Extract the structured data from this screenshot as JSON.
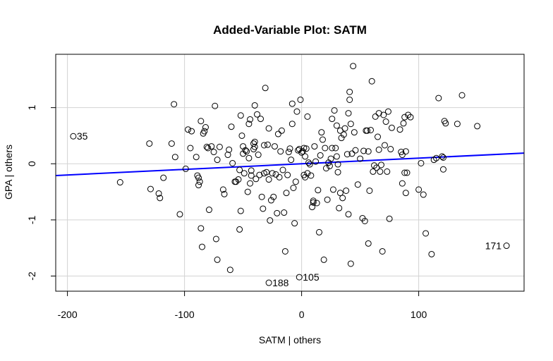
{
  "chart_data": {
    "type": "scatter",
    "title": "Added-Variable Plot: SATM",
    "xlabel": "SATM | others",
    "ylabel": "GPA | others",
    "xlim": [
      -210,
      190
    ],
    "ylim": [
      -2.27,
      1.95
    ],
    "x_ticks": [
      -200,
      -100,
      0,
      100
    ],
    "y_ticks": [
      -2,
      -1,
      0,
      1
    ],
    "grid": true,
    "fit_line": {
      "color": "#0000ff",
      "x": [
        -210,
        190
      ],
      "y": [
        -0.21,
        0.19
      ]
    },
    "labeled_points": [
      {
        "label": "35",
        "x": -195,
        "y": 0.49
      },
      {
        "label": "171",
        "x": 175,
        "y": -1.46
      },
      {
        "label": "105",
        "x": -2,
        "y": -2.02
      },
      {
        "label": "188",
        "x": -28,
        "y": -2.12
      }
    ],
    "points": [
      [
        -195,
        0.49
      ],
      [
        175,
        -1.46
      ],
      [
        -2,
        -2.02
      ],
      [
        -28,
        -2.12
      ],
      [
        -155,
        -0.33
      ],
      [
        -130,
        0.36
      ],
      [
        -129,
        -0.45
      ],
      [
        -122,
        -0.53
      ],
      [
        -121,
        -0.61
      ],
      [
        -118,
        -0.25
      ],
      [
        -111,
        0.36
      ],
      [
        -109,
        1.06
      ],
      [
        -108,
        0.12
      ],
      [
        -104,
        -0.9
      ],
      [
        -99,
        -0.09
      ],
      [
        -97,
        0.61
      ],
      [
        -95,
        0.28
      ],
      [
        -94,
        0.58
      ],
      [
        -90,
        0.12
      ],
      [
        -89,
        -0.21
      ],
      [
        -88,
        -0.25
      ],
      [
        -88,
        -0.38
      ],
      [
        -87,
        -0.32
      ],
      [
        -86,
        -1.15
      ],
      [
        -86,
        0.76
      ],
      [
        -85,
        -1.48
      ],
      [
        -84,
        0.54
      ],
      [
        -83,
        0.58
      ],
      [
        -82,
        0.65
      ],
      [
        -81,
        0.3
      ],
      [
        -80,
        0.28
      ],
      [
        -79,
        -0.82
      ],
      [
        -77,
        0.31
      ],
      [
        -75,
        0.21
      ],
      [
        -74,
        1.03
      ],
      [
        -73,
        -1.34
      ],
      [
        -72,
        0.07
      ],
      [
        -72,
        -1.71
      ],
      [
        -70,
        0.3
      ],
      [
        -67,
        -0.46
      ],
      [
        -66,
        -0.54
      ],
      [
        -63,
        0.16
      ],
      [
        -62,
        0.25
      ],
      [
        -61,
        -1.89
      ],
      [
        -60,
        0.66
      ],
      [
        -59,
        0.01
      ],
      [
        -57,
        -0.32
      ],
      [
        -56,
        -0.32
      ],
      [
        -54,
        -0.28
      ],
      [
        -53,
        -1.17
      ],
      [
        -53,
        -0.11
      ],
      [
        -52,
        -0.84
      ],
      [
        -52,
        0.86
      ],
      [
        -51,
        0.5
      ],
      [
        -50,
        0.18
      ],
      [
        -50,
        0.31
      ],
      [
        -49,
        -0.17
      ],
      [
        -48,
        0.24
      ],
      [
        -47,
        0.22
      ],
      [
        -46,
        -0.5
      ],
      [
        -45,
        0.1
      ],
      [
        -45,
        0.71
      ],
      [
        -44,
        0.79
      ],
      [
        -44,
        -0.35
      ],
      [
        -43,
        -0.12
      ],
      [
        -43,
        -0.21
      ],
      [
        -41,
        0.36
      ],
      [
        -41,
        0.26
      ],
      [
        -40,
        0.3
      ],
      [
        -40,
        0.39
      ],
      [
        -40,
        1.04
      ],
      [
        -39,
        -0.27
      ],
      [
        -38,
        0.88
      ],
      [
        -37,
        0.16
      ],
      [
        -36,
        -0.2
      ],
      [
        -35,
        0.8
      ],
      [
        -34,
        -0.59
      ],
      [
        -33,
        -0.8
      ],
      [
        -32,
        0.33
      ],
      [
        -32,
        -0.17
      ],
      [
        -31,
        1.35
      ],
      [
        -30,
        -0.15
      ],
      [
        -29,
        0.34
      ],
      [
        -28,
        0.63
      ],
      [
        -28,
        -0.28
      ],
      [
        -27,
        -1.01
      ],
      [
        -26,
        -0.65
      ],
      [
        -25,
        -0.17
      ],
      [
        -24,
        -0.59
      ],
      [
        -23,
        0.31
      ],
      [
        -22,
        -0.19
      ],
      [
        -21,
        -0.88
      ],
      [
        -20,
        0.53
      ],
      [
        -19,
        -0.24
      ],
      [
        -18,
        0.22
      ],
      [
        -17,
        0.59
      ],
      [
        -16,
        -0.11
      ],
      [
        -15,
        -0.87
      ],
      [
        -14,
        -1.56
      ],
      [
        -13,
        -0.52
      ],
      [
        -12,
        -0.2
      ],
      [
        -11,
        0.21
      ],
      [
        -10,
        0.27
      ],
      [
        -9,
        0.07
      ],
      [
        -8,
        1.07
      ],
      [
        -8,
        0.71
      ],
      [
        -7,
        -0.43
      ],
      [
        -6,
        -1.06
      ],
      [
        -5,
        -0.32
      ],
      [
        -4,
        0.93
      ],
      [
        -3,
        0.24
      ],
      [
        -2,
        0.26
      ],
      [
        -1,
        1.14
      ],
      [
        0,
        0.2
      ],
      [
        1,
        0.22
      ],
      [
        2,
        -0.2
      ],
      [
        2,
        0.28
      ],
      [
        3,
        -0.24
      ],
      [
        3,
        0.13
      ],
      [
        4,
        0.27
      ],
      [
        5,
        0.84
      ],
      [
        5,
        -0.17
      ],
      [
        6,
        0.02
      ],
      [
        7,
        -0.01
      ],
      [
        8,
        -0.21
      ],
      [
        9,
        -0.77
      ],
      [
        10,
        -0.66
      ],
      [
        10,
        -0.69
      ],
      [
        11,
        0.31
      ],
      [
        12,
        0.04
      ],
      [
        13,
        -0.7
      ],
      [
        14,
        -0.47
      ],
      [
        15,
        -1.22
      ],
      [
        16,
        0.15
      ],
      [
        17,
        0.56
      ],
      [
        18,
        0.43
      ],
      [
        19,
        -1.71
      ],
      [
        20,
        0.28
      ],
      [
        21,
        -0.08
      ],
      [
        22,
        -0.64
      ],
      [
        23,
        0.02
      ],
      [
        24,
        -0.04
      ],
      [
        25,
        0.09
      ],
      [
        26,
        0.28
      ],
      [
        26,
        0.8
      ],
      [
        27,
        -0.46
      ],
      [
        28,
        0.95
      ],
      [
        29,
        0.28
      ],
      [
        30,
        0.13
      ],
      [
        30,
        0.68
      ],
      [
        31,
        -0.15
      ],
      [
        31,
        -0.01
      ],
      [
        32,
        -0.79
      ],
      [
        33,
        0.59
      ],
      [
        33,
        -0.52
      ],
      [
        34,
        0.46
      ],
      [
        35,
        -0.61
      ],
      [
        36,
        0.52
      ],
      [
        37,
        0.63
      ],
      [
        38,
        -0.48
      ],
      [
        39,
        0.17
      ],
      [
        40,
        -0.9
      ],
      [
        40,
        0.9
      ],
      [
        41,
        1.28
      ],
      [
        41,
        1.14
      ],
      [
        42,
        0.71
      ],
      [
        42,
        -1.78
      ],
      [
        43,
        0.18
      ],
      [
        44,
        1.74
      ],
      [
        45,
        0.56
      ],
      [
        46,
        0.24
      ],
      [
        48,
        -0.37
      ],
      [
        50,
        0.09
      ],
      [
        52,
        -0.97
      ],
      [
        53,
        0.23
      ],
      [
        54,
        -1.02
      ],
      [
        55,
        0.59
      ],
      [
        56,
        0.59
      ],
      [
        57,
        0.22
      ],
      [
        57,
        -1.42
      ],
      [
        58,
        -0.48
      ],
      [
        59,
        0.6
      ],
      [
        60,
        1.47
      ],
      [
        61,
        -0.14
      ],
      [
        62,
        -0.03
      ],
      [
        63,
        0.84
      ],
      [
        64,
        -0.07
      ],
      [
        65,
        0.48
      ],
      [
        66,
        0.25
      ],
      [
        66,
        0.9
      ],
      [
        67,
        -0.14
      ],
      [
        68,
        -0.02
      ],
      [
        69,
        -1.56
      ],
      [
        70,
        0.87
      ],
      [
        71,
        0.33
      ],
      [
        72,
        0.75
      ],
      [
        73,
        -0.14
      ],
      [
        74,
        0.93
      ],
      [
        75,
        -0.98
      ],
      [
        76,
        0.26
      ],
      [
        77,
        0.64
      ],
      [
        84,
        0.61
      ],
      [
        85,
        0.21
      ],
      [
        86,
        -0.35
      ],
      [
        86,
        0.16
      ],
      [
        87,
        0.72
      ],
      [
        88,
        -0.16
      ],
      [
        88,
        0.83
      ],
      [
        89,
        0.22
      ],
      [
        89,
        -0.52
      ],
      [
        90,
        -0.16
      ],
      [
        91,
        0.87
      ],
      [
        93,
        0.83
      ],
      [
        100,
        -0.46
      ],
      [
        102,
        0.01
      ],
      [
        104,
        -0.55
      ],
      [
        106,
        -1.24
      ],
      [
        111,
        -1.61
      ],
      [
        113,
        0.07
      ],
      [
        115,
        0.1
      ],
      [
        117,
        1.17
      ],
      [
        120,
        0.13
      ],
      [
        121,
        0.11
      ],
      [
        121,
        -0.1
      ],
      [
        122,
        0.76
      ],
      [
        123,
        0.72
      ],
      [
        133,
        0.71
      ],
      [
        137,
        1.22
      ],
      [
        150,
        0.67
      ]
    ]
  }
}
